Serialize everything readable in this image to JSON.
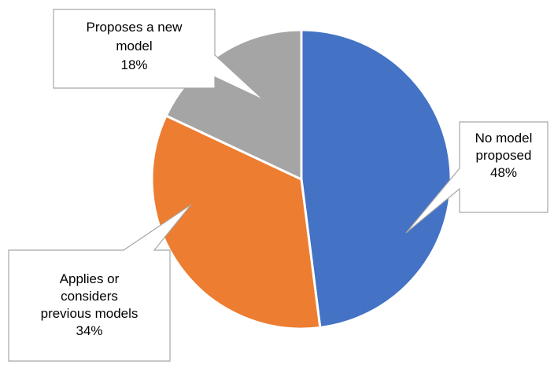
{
  "chart_data": {
    "type": "pie",
    "slices": [
      {
        "label_lines": [
          "No model",
          "proposed"
        ],
        "value_text": "48%",
        "value": 48,
        "color": "#4472C4"
      },
      {
        "label_lines": [
          "Applies or",
          "considers",
          "previous models"
        ],
        "value_text": "34%",
        "value": 34,
        "color": "#ED7D31"
      },
      {
        "label_lines": [
          "Proposes a new",
          "model"
        ],
        "value_text": "18%",
        "value": 18,
        "color": "#A5A5A5"
      }
    ],
    "legend": "none",
    "data_labels": "callouts"
  }
}
